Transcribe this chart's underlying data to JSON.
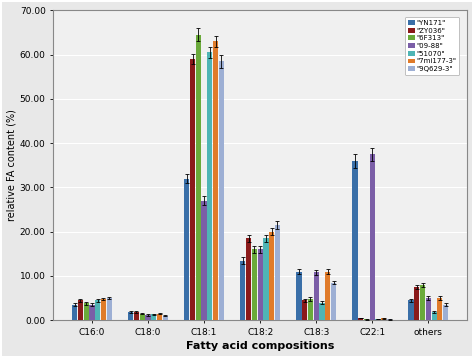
{
  "categories": [
    "C16:0",
    "C18:0",
    "C18:1",
    "C18:2",
    "C18:3",
    "C22:1",
    "others"
  ],
  "series": [
    {
      "name": "\"YN171\"",
      "color": "#3a6fa8",
      "values": [
        3.5,
        1.8,
        32.0,
        13.5,
        11.0,
        36.0,
        4.5
      ],
      "errors": [
        0.3,
        0.2,
        1.0,
        0.8,
        0.5,
        1.5,
        0.4
      ]
    },
    {
      "name": "\"ZY036\"",
      "color": "#8b1a1a",
      "values": [
        4.5,
        1.9,
        59.0,
        18.5,
        4.5,
        0.5,
        7.5
      ],
      "errors": [
        0.3,
        0.2,
        1.2,
        0.8,
        0.4,
        0.1,
        0.5
      ]
    },
    {
      "name": "\"6F313\"",
      "color": "#6aaa3a",
      "values": [
        3.8,
        1.5,
        64.5,
        16.0,
        4.8,
        0.2,
        8.0
      ],
      "errors": [
        0.3,
        0.2,
        1.5,
        0.7,
        0.4,
        0.05,
        0.5
      ]
    },
    {
      "name": "\"09-88\"",
      "color": "#7b5ea7",
      "values": [
        3.5,
        1.2,
        27.0,
        16.0,
        10.8,
        37.5,
        5.0
      ],
      "errors": [
        0.3,
        0.15,
        1.0,
        0.8,
        0.5,
        1.5,
        0.4
      ]
    },
    {
      "name": "\"51070\"",
      "color": "#4fb5b5",
      "values": [
        4.5,
        1.3,
        60.5,
        18.5,
        4.0,
        0.3,
        1.8
      ],
      "errors": [
        0.3,
        0.15,
        1.2,
        0.8,
        0.3,
        0.05,
        0.2
      ]
    },
    {
      "name": "\"7mi177-3\"",
      "color": "#e07b2a",
      "values": [
        4.8,
        1.5,
        63.0,
        20.0,
        11.0,
        0.4,
        5.0
      ],
      "errors": [
        0.3,
        0.2,
        1.3,
        0.8,
        0.5,
        0.05,
        0.4
      ]
    },
    {
      "name": "\"9Q629-3\"",
      "color": "#9dafd4",
      "values": [
        5.0,
        1.0,
        58.5,
        21.5,
        8.5,
        0.2,
        3.5
      ],
      "errors": [
        0.3,
        0.15,
        1.5,
        0.9,
        0.4,
        0.05,
        0.3
      ]
    }
  ],
  "ylabel": "relative FA content (%)",
  "xlabel": "Fatty acid compositions",
  "ylim": [
    0,
    70
  ],
  "yticks": [
    0,
    10.0,
    20.0,
    30.0,
    40.0,
    50.0,
    60.0,
    70.0
  ],
  "plot_bg": "#f0f0f0",
  "fig_bg": "#e8e8e8",
  "grid_color": "#ffffff",
  "border_color": "#888888"
}
